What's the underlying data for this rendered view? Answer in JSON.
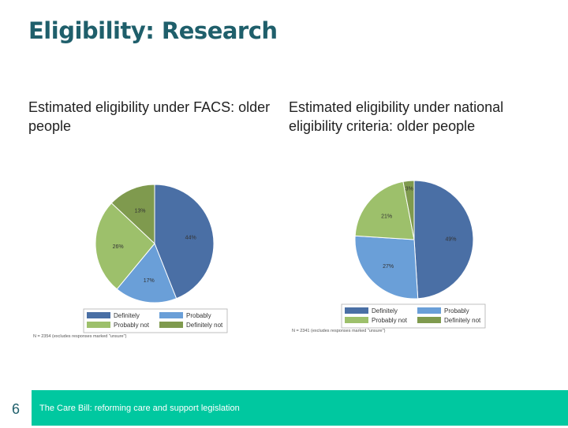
{
  "slide": {
    "title": "Eligibility: Research",
    "number": "6",
    "footer": "The Care Bill: reforming care and support legislation"
  },
  "colors": {
    "Definitely": "#4a6fa5",
    "Probably": "#6a9fd8",
    "Probably not": "#9dc06b",
    "Definitely not": "#7f9a4e",
    "footer_bar": "#00c8a0",
    "title": "#1f5f6b"
  },
  "chart_data": [
    {
      "type": "pie",
      "title": "Estimated eligibility under FACS: older people",
      "categories": [
        "Definitely",
        "Probably",
        "Probably not",
        "Definitely not"
      ],
      "values": [
        44,
        17,
        26,
        13
      ],
      "value_labels": [
        "44%",
        "17%",
        "26%",
        "13%"
      ],
      "legend": [
        "Definitely",
        "Probably",
        "Probably not",
        "Definitely not"
      ],
      "legend_placement": "bottom",
      "note": "N = 2354 (excludes responses marked \"unsure\")"
    },
    {
      "type": "pie",
      "title": "Estimated eligibility under national eligibility criteria: older people",
      "categories": [
        "Definitely",
        "Probably",
        "Probably not",
        "Definitely not"
      ],
      "values": [
        49,
        27,
        21,
        3
      ],
      "value_labels": [
        "49%",
        "27%",
        "21%",
        "3%"
      ],
      "legend": [
        "Definitely",
        "Probably",
        "Probably not",
        "Definitely not"
      ],
      "legend_placement": "bottom",
      "note": "N = 2341 (excludes responses marked \"unsure\")"
    }
  ]
}
